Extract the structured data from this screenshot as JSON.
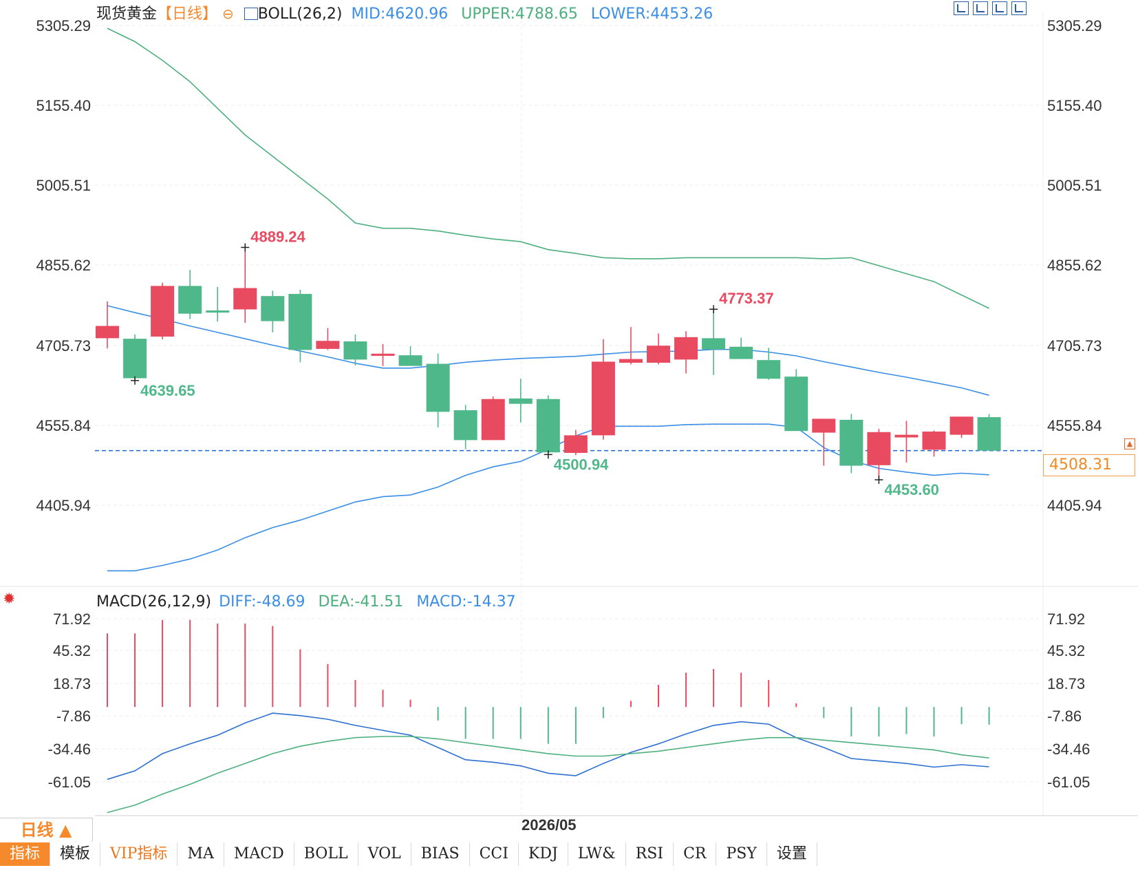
{
  "header": {
    "symbol": "现货黄金",
    "period_tag": "【日线】",
    "zoom_symbol": "⊖",
    "boll_label": "BOLL(26,2)",
    "mid": "MID:4620.96",
    "upper": "UPPER:4788.65",
    "lower": "LOWER:4453.26"
  },
  "macd_header": {
    "label": "MACD(26,12,9)",
    "diff": "DIFF:-48.69",
    "dea": "DEA:-41.51",
    "macd": "MACD:-14.37"
  },
  "current_price_tag": "4508.31",
  "date_label": "2026/05",
  "period_button": "日线 ▲",
  "tabs": [
    "指标",
    "模板",
    "VIP指标",
    "MA",
    "MACD",
    "BOLL",
    "VOL",
    "BIAS",
    "CCI",
    "KDJ",
    "LW&",
    "RSI",
    "CR",
    "PSY",
    "设置"
  ],
  "colors": {
    "up": "#e84a5f",
    "down": "#4fb88a",
    "mid_line": "#3a8ee6",
    "upper_line": "#4caf7d",
    "lower_line": "#3a8ee6",
    "diff_line": "#2d6fd1",
    "dea_line": "#4caf7d",
    "accent": "#f5892b"
  },
  "chart_data": [
    {
      "type": "candlestick",
      "y_ticks": [
        "5305.29",
        "5155.40",
        "5005.51",
        "4855.62",
        "4705.73",
        "4555.84",
        "4405.94"
      ],
      "ylim": [
        4280,
        5320
      ],
      "current_price": 4508.31,
      "annotations": [
        {
          "label": "4889.24",
          "index": 5,
          "value": 4889.24,
          "kind": "high"
        },
        {
          "label": "4639.65",
          "index": 1,
          "value": 4639.65,
          "kind": "low"
        },
        {
          "label": "4773.37",
          "index": 22,
          "value": 4773.37,
          "kind": "high"
        },
        {
          "label": "4500.94",
          "index": 16,
          "value": 4500.94,
          "kind": "low"
        },
        {
          "label": "4453.60",
          "index": 28,
          "value": 4453.6,
          "kind": "low"
        }
      ],
      "candles": [
        {
          "o": 4719,
          "h": 4788,
          "l": 4700,
          "c": 4742
        },
        {
          "o": 4718,
          "h": 4726,
          "l": 4639.65,
          "c": 4644
        },
        {
          "o": 4722,
          "h": 4823,
          "l": 4717,
          "c": 4817
        },
        {
          "o": 4817,
          "h": 4847,
          "l": 4755,
          "c": 4765
        },
        {
          "o": 4771,
          "h": 4815,
          "l": 4750,
          "c": 4767
        },
        {
          "o": 4773,
          "h": 4889.24,
          "l": 4748,
          "c": 4813
        },
        {
          "o": 4798,
          "h": 4808,
          "l": 4730,
          "c": 4751
        },
        {
          "o": 4802,
          "h": 4810,
          "l": 4674,
          "c": 4697
        },
        {
          "o": 4699,
          "h": 4738,
          "l": 4697,
          "c": 4714
        },
        {
          "o": 4713,
          "h": 4726,
          "l": 4668,
          "c": 4679
        },
        {
          "o": 4686,
          "h": 4708,
          "l": 4667,
          "c": 4690
        },
        {
          "o": 4687,
          "h": 4704,
          "l": 4677,
          "c": 4667
        },
        {
          "o": 4671,
          "h": 4690,
          "l": 4552,
          "c": 4581
        },
        {
          "o": 4584,
          "h": 4594,
          "l": 4511,
          "c": 4528
        },
        {
          "o": 4528,
          "h": 4610,
          "l": 4528,
          "c": 4605
        },
        {
          "o": 4606,
          "h": 4643,
          "l": 4561,
          "c": 4596
        },
        {
          "o": 4605,
          "h": 4612,
          "l": 4500.94,
          "c": 4505
        },
        {
          "o": 4504,
          "h": 4547,
          "l": 4500,
          "c": 4537
        },
        {
          "o": 4537,
          "h": 4717,
          "l": 4529,
          "c": 4675
        },
        {
          "o": 4673,
          "h": 4740,
          "l": 4670,
          "c": 4680
        },
        {
          "o": 4673,
          "h": 4728,
          "l": 4670,
          "c": 4705
        },
        {
          "o": 4679,
          "h": 4732,
          "l": 4653,
          "c": 4721
        },
        {
          "o": 4719,
          "h": 4773.37,
          "l": 4650,
          "c": 4698
        },
        {
          "o": 4703,
          "h": 4720,
          "l": 4680,
          "c": 4680
        },
        {
          "o": 4678,
          "h": 4701,
          "l": 4641,
          "c": 4643
        },
        {
          "o": 4647,
          "h": 4661,
          "l": 4547,
          "c": 4545
        },
        {
          "o": 4542,
          "h": 4563,
          "l": 4480,
          "c": 4568
        },
        {
          "o": 4566,
          "h": 4577,
          "l": 4466,
          "c": 4480
        },
        {
          "o": 4481,
          "h": 4549,
          "l": 4453.6,
          "c": 4543
        },
        {
          "o": 4533,
          "h": 4564,
          "l": 4486,
          "c": 4538
        },
        {
          "o": 4510,
          "h": 4546,
          "l": 4497,
          "c": 4544
        },
        {
          "o": 4538,
          "h": 4567,
          "l": 4532,
          "c": 4572
        },
        {
          "o": 4571,
          "h": 4577,
          "l": 4508,
          "c": 4508.31
        }
      ],
      "boll_mid": [
        4780,
        4767,
        4755,
        4742,
        4730,
        4718,
        4706,
        4695,
        4684,
        4672,
        4663,
        4663,
        4668,
        4674,
        4678,
        4681,
        4683,
        4685,
        4689,
        4693,
        4694,
        4695,
        4698,
        4698,
        4693,
        4686,
        4675,
        4665,
        4655,
        4646,
        4636,
        4626,
        4612
      ],
      "boll_upper": [
        5300,
        5275,
        5240,
        5200,
        5150,
        5100,
        5060,
        5020,
        4980,
        4935,
        4925,
        4925,
        4920,
        4912,
        4905,
        4900,
        4885,
        4878,
        4870,
        4868,
        4868,
        4870,
        4870,
        4870,
        4870,
        4870,
        4868,
        4870,
        4855,
        4840,
        4825,
        4800,
        4775
      ],
      "boll_lower": [
        4283,
        4283,
        4293,
        4305,
        4322,
        4345,
        4364,
        4378,
        4395,
        4412,
        4422,
        4425,
        4440,
        4462,
        4478,
        4488,
        4511,
        4536,
        4554,
        4554,
        4554,
        4557,
        4558,
        4558,
        4558,
        4552,
        4514,
        4490,
        4475,
        4468,
        4462,
        4466,
        4463
      ]
    },
    {
      "type": "bar",
      "name": "MACD",
      "y_ticks": [
        "71.92",
        "45.32",
        "18.73",
        "-7.86",
        "-34.46",
        "-61.05"
      ],
      "ylim": [
        -87,
        81
      ],
      "macd_hist": [
        60,
        60,
        71,
        71,
        68,
        68,
        66,
        47,
        35,
        22,
        14,
        6,
        -11,
        -26,
        -26,
        -26,
        -30,
        -30,
        -9,
        5,
        18,
        28,
        31,
        28,
        22,
        3,
        -9,
        -24,
        -24,
        -22,
        -24,
        -14,
        -14.37
      ],
      "diff": [
        -59,
        -52,
        -38,
        -30,
        -23,
        -13,
        -5,
        -7,
        -10,
        -15,
        -19,
        -23,
        -33,
        -43,
        -45,
        -48,
        -54,
        -56,
        -46,
        -37,
        -30,
        -22,
        -15,
        -12,
        -14,
        -25,
        -33,
        -42,
        -44,
        -46,
        -49,
        -47,
        -48.69
      ],
      "dea": [
        -86,
        -80,
        -71,
        -63,
        -54,
        -46,
        -38,
        -32,
        -28,
        -25,
        -24,
        -24,
        -26,
        -29,
        -32,
        -35,
        -38,
        -40,
        -40,
        -38,
        -36,
        -33,
        -30,
        -27,
        -25,
        -25,
        -27,
        -29,
        -31,
        -33,
        -35,
        -39,
        -41.51
      ]
    }
  ]
}
